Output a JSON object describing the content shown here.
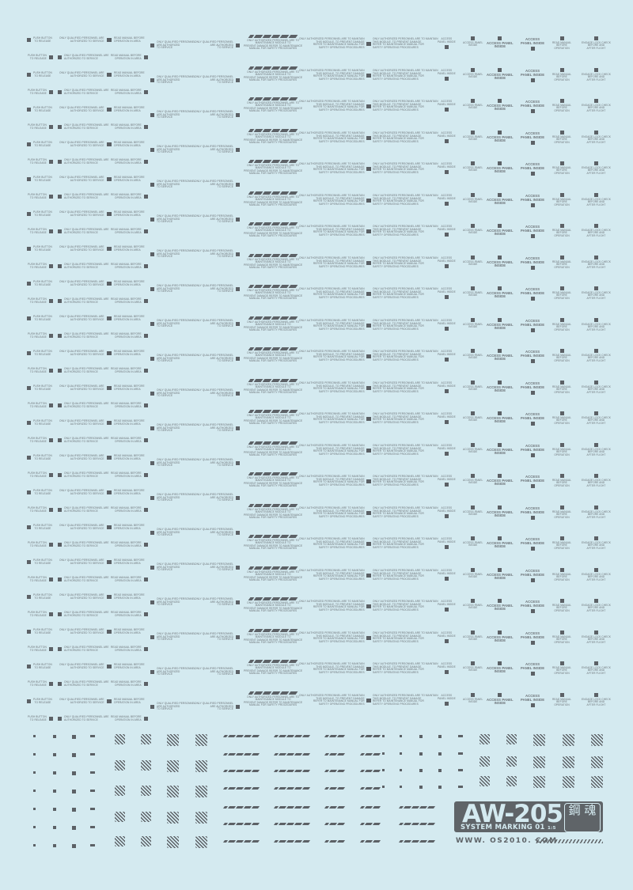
{
  "sheet": {
    "background": "#d4eaf0",
    "ink": "#5c6166",
    "product_code": "AW-205",
    "subtitle": "SYSTEM MARKING 01",
    "scale": "1:5",
    "kanji": "鋼 魂",
    "website": "WWW. OS2010. COM"
  },
  "labels": {
    "push_button": "PUSH BUTTON TO RELEASE",
    "push_button_l1": "PUSH BUTTON",
    "push_button_l2": "TO RELEASE",
    "qualified_l1": "ONLY QUALIFIED PERSONNEL ARE",
    "qualified_l2": "AUTHORIZED TO SERVICE",
    "read_manual_area_l1": "READ MANUAL BEFORE",
    "read_manual_area_l2": "OPERATION IN AREA",
    "qualified3_l1": "ONLY QUALIFIED PERSONNEL",
    "qualified3_l2": "ARE AUTHORIZED",
    "qualified3_l3": "TO SERVICE",
    "warn_l1": "ONLY AUTHORIZED PERSONNEL ARE TO",
    "warn_l2": "MAINTENANCE MODULE TO",
    "warn_l3": "PREVENT DAMAGE REFER TO MAINTENANCE",
    "warn_l4": "MANUAL FOR SAFETY PROCEDURES",
    "auth_l1": "ONLY AUTHORIZED PERSONNEL ARE TO MAINTAIN",
    "auth_l2": "THIS MODULE. TO PREVENT DAMAGE",
    "auth_l3": "REFER TO MAINTENANCE MANUAL FOR",
    "auth_l4": "SAFETY OPERATING PROCEDURES",
    "access_l1": "ACCESS",
    "access_l2": "PANEL INSIDE",
    "access_small_l1": "ACCESS PANEL",
    "access_small_l2": "INSIDE",
    "access_big_l1": "ACCESS PANEL",
    "access_big_l2": "INSIDE",
    "access_big2_l1": "ACCESS",
    "access_big2_l2": "PANEL INSIDE",
    "read_op_l1": "READ MANUAL",
    "read_op_l2": "BEFORE",
    "read_op_l3": "OPERATION",
    "lock_l1": "ENGAGE LOCK CHECK",
    "lock_l2": "BEFORE AND",
    "lock_l3": "AFTER FLIGHT"
  }
}
